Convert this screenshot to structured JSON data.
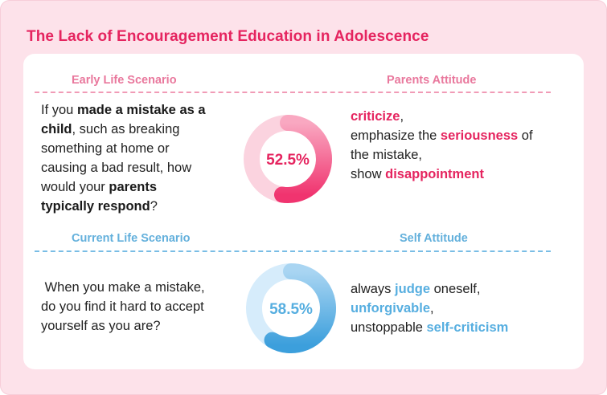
{
  "title": "The Lack of Encouragement Education in Adolescence",
  "colors": {
    "pink_accent": "#e5245f",
    "pink_light": "#f9a8c1",
    "blue_accent": "#3fa4e0",
    "blue_light": "#d6ecfb",
    "background": "#fde2ea"
  },
  "early": {
    "header_left": "Early Life Scenario",
    "header_right": "Parents Attitude",
    "question": {
      "l1a": "If you ",
      "l1b": "made a mistake as a",
      "l2a": "child",
      "l2b": ", such as breaking",
      "l3": "something at home or",
      "l4": "causing a bad result, how",
      "l5a": "would your ",
      "l5b": "parents",
      "l6a": "typically respond",
      "l6b": "?"
    },
    "percent_label": "52.5%",
    "percent_value": 52.5,
    "answer": {
      "l1a": "criticize",
      "l1b": ",",
      "l2a": "emphasize the ",
      "l2b": "seriousness",
      "l2c": " of",
      "l3": "the mistake,",
      "l4a": "show ",
      "l4b": "disappointment"
    }
  },
  "current": {
    "header_left": "Current Life Scenario",
    "header_right": "Self Attitude",
    "question": {
      "l1": " When you make a mistake,",
      "l2": "do you find it hard to accept",
      "l3": "yourself as you are?"
    },
    "percent_label": "58.5%",
    "percent_value": 58.5,
    "answer": {
      "l1a": "always ",
      "l1b": "judge",
      "l1c": " oneself,",
      "l2a": "unforgivable",
      "l2b": ",",
      "l3a": "unstoppable ",
      "l3b": "self-criticism"
    }
  }
}
